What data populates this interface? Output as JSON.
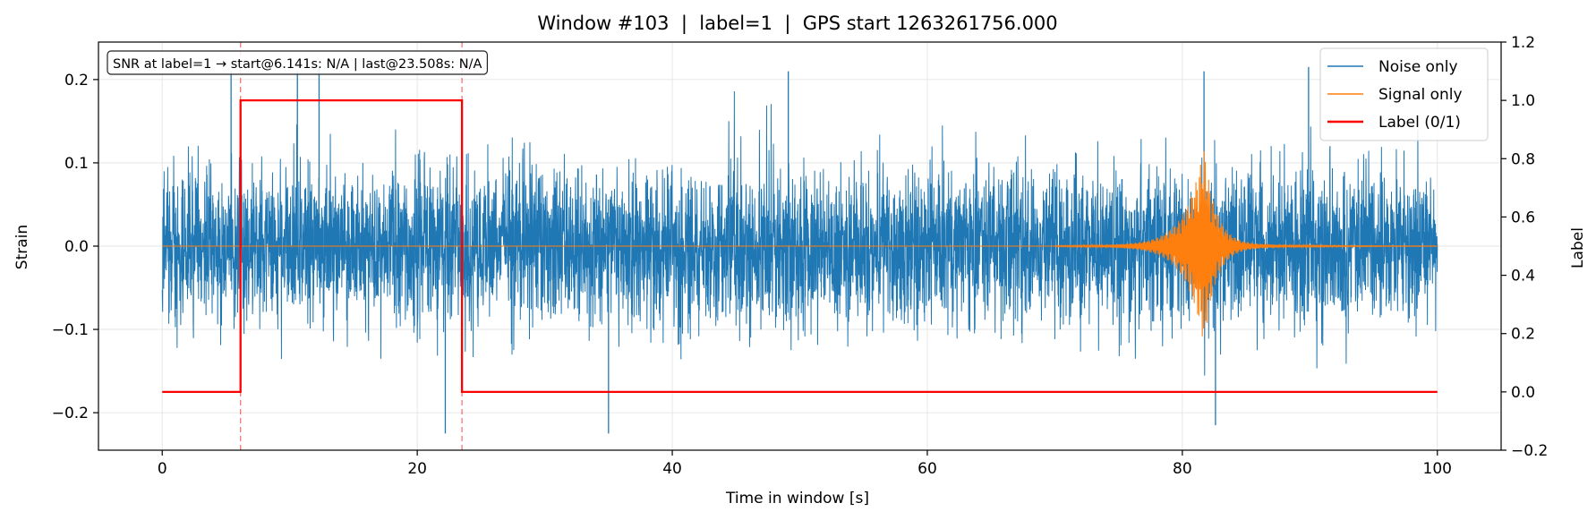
{
  "chart_data": {
    "type": "line",
    "title": "Window #103  |  label=1  |  GPS start 1263261756.000",
    "xlabel": "Time in window [s]",
    "ylabel": "Strain",
    "y2label": "Label",
    "xlim": [
      -5,
      105
    ],
    "ylim": [
      -0.245,
      0.245
    ],
    "y2lim": [
      -0.2,
      1.2
    ],
    "xticks": [
      0,
      20,
      40,
      60,
      80,
      100
    ],
    "yticks": [
      -0.2,
      -0.1,
      0.0,
      0.1,
      0.2
    ],
    "y2ticks": [
      -0.2,
      0.0,
      0.2,
      0.4,
      0.6,
      0.8,
      1.0,
      1.2
    ],
    "xtick_labels": [
      "0",
      "20",
      "40",
      "60",
      "80",
      "100"
    ],
    "ytick_labels": [
      "−0.2",
      "−0.1",
      "0.0",
      "0.1",
      "0.2"
    ],
    "y2tick_labels": [
      "−0.2",
      "0.0",
      "0.2",
      "0.4",
      "0.6",
      "0.8",
      "1.0",
      "1.2"
    ],
    "grid": true,
    "legend_position": "top-right",
    "annotation": "SNR at label=1 → start@6.141s: N/A | last@23.508s: N/A",
    "vlines": [
      6.141,
      23.508
    ],
    "series": [
      {
        "name": "Noise only",
        "color": "#1f77b4",
        "axis": "left",
        "kind": "noise",
        "x_range": [
          0,
          100
        ],
        "envelope_typical": 0.1,
        "peaks_approx": [
          {
            "x": 5.4,
            "y": 0.21
          },
          {
            "x": 10.6,
            "y": 0.21
          },
          {
            "x": 12.3,
            "y": 0.215
          },
          {
            "x": 49.1,
            "y": 0.21
          },
          {
            "x": 89.9,
            "y": 0.215
          },
          {
            "x": 22.2,
            "y": -0.225
          },
          {
            "x": 35.0,
            "y": -0.225
          },
          {
            "x": 82.6,
            "y": -0.215
          },
          {
            "x": 81.7,
            "y": 0.21
          }
        ]
      },
      {
        "name": "Signal only",
        "color": "#ff7f0e",
        "axis": "left",
        "kind": "chirp",
        "x_range": [
          0,
          100
        ],
        "merger_time": 81.7,
        "peak_amplitude": 0.115,
        "activity_start": 70
      },
      {
        "name": "Label (0/1)",
        "color": "#ff0000",
        "axis": "right",
        "kind": "step",
        "x": [
          0,
          6.141,
          6.141,
          23.508,
          23.508,
          100
        ],
        "y": [
          0,
          0,
          1,
          1,
          0,
          0
        ]
      }
    ]
  }
}
